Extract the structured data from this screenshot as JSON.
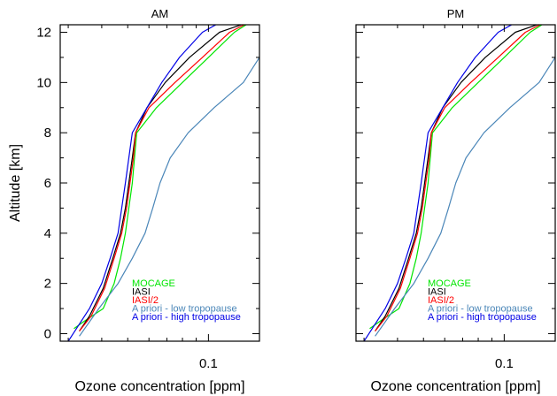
{
  "chart_data": [
    {
      "type": "line",
      "title": "AM",
      "xlabel": "Ozone concentration [ppm]",
      "ylabel": "Altitude [km]",
      "xscale": "log",
      "xlim": [
        0.028,
        0.155
      ],
      "ylim": [
        -0.3,
        12.3
      ],
      "x_ticks": [
        0.1
      ],
      "x_tick_labels": [
        "0.1"
      ],
      "y_ticks": [
        0,
        2,
        4,
        6,
        8,
        10,
        12
      ],
      "y_tick_labels": [
        "0",
        "2",
        "4",
        "6",
        "8",
        "10",
        "12"
      ],
      "legend_position": "bottom-right",
      "series": [
        {
          "name": "MOCAGE",
          "color": "#00e600",
          "x": [
            0.0315,
            0.0345,
            0.0405,
            0.0445,
            0.047,
            0.049,
            0.0505,
            0.052,
            0.054,
            0.064,
            0.08,
            0.1,
            0.125,
            0.148
          ],
          "y": [
            0.2,
            0.5,
            1.0,
            2.0,
            3.0,
            4.0,
            5.0,
            6.0,
            8.0,
            9.0,
            10.0,
            11.0,
            12.0,
            12.5
          ]
        },
        {
          "name": "IASI",
          "color": "#000000",
          "x": [
            0.033,
            0.036,
            0.0405,
            0.044,
            0.047,
            0.049,
            0.0505,
            0.052,
            0.0535,
            0.059,
            0.069,
            0.085,
            0.11,
            0.15
          ],
          "y": [
            0.1,
            0.7,
            1.8,
            3.0,
            4.0,
            5.0,
            6.0,
            7.0,
            8.0,
            9.0,
            10.0,
            11.0,
            12.0,
            12.5
          ]
        },
        {
          "name": "IASI/2",
          "color": "#ff0000",
          "x": [
            0.033,
            0.0365,
            0.041,
            0.0445,
            0.0475,
            0.0495,
            0.051,
            0.0525,
            0.0535,
            0.06,
            0.075,
            0.095,
            0.12,
            0.148
          ],
          "y": [
            0.1,
            0.7,
            1.8,
            3.0,
            4.0,
            5.0,
            6.0,
            7.0,
            8.0,
            9.0,
            10.0,
            11.0,
            12.0,
            12.5
          ]
        },
        {
          "name": "A priori - low tropopause",
          "color": "#4a86b8",
          "x": [
            0.033,
            0.039,
            0.046,
            0.052,
            0.058,
            0.062,
            0.066,
            0.072,
            0.084,
            0.105,
            0.135,
            0.155
          ],
          "y": [
            -0.1,
            1.0,
            2.0,
            3.0,
            4.0,
            5.0,
            6.0,
            7.0,
            8.0,
            9.0,
            10.0,
            11.0
          ]
        },
        {
          "name": "A priori - high tropopause",
          "color": "#0000e6",
          "x": [
            0.03,
            0.036,
            0.04,
            0.043,
            0.046,
            0.049,
            0.052,
            0.059,
            0.067,
            0.078,
            0.095,
            0.115
          ],
          "y": [
            -0.3,
            1.0,
            2.0,
            3.0,
            4.0,
            6.0,
            8.0,
            9.0,
            10.0,
            11.0,
            12.0,
            12.5
          ]
        }
      ]
    },
    {
      "type": "line",
      "title": "PM",
      "xlabel": "Ozone concentration [ppm]",
      "ylabel": "",
      "xscale": "log",
      "xlim": [
        0.028,
        0.155
      ],
      "ylim": [
        -0.3,
        12.3
      ],
      "x_ticks": [
        0.1
      ],
      "x_tick_labels": [
        "0.1"
      ],
      "y_ticks": [
        0,
        2,
        4,
        6,
        8,
        10,
        12
      ],
      "y_tick_labels": [],
      "legend_position": "bottom-right",
      "series": [
        {
          "name": "MOCAGE",
          "color": "#00e600",
          "x": [
            0.0315,
            0.0345,
            0.0405,
            0.0445,
            0.047,
            0.049,
            0.0505,
            0.052,
            0.054,
            0.064,
            0.08,
            0.1,
            0.125,
            0.148
          ],
          "y": [
            0.2,
            0.5,
            1.0,
            2.0,
            3.0,
            4.0,
            5.0,
            6.0,
            8.0,
            9.0,
            10.0,
            11.0,
            12.0,
            12.5
          ]
        },
        {
          "name": "IASI",
          "color": "#000000",
          "x": [
            0.033,
            0.036,
            0.0405,
            0.044,
            0.047,
            0.049,
            0.0505,
            0.052,
            0.0535,
            0.059,
            0.069,
            0.085,
            0.11,
            0.15
          ],
          "y": [
            0.1,
            0.7,
            1.8,
            3.0,
            4.0,
            5.0,
            6.0,
            7.0,
            8.0,
            9.0,
            10.0,
            11.0,
            12.0,
            12.5
          ]
        },
        {
          "name": "IASI/2",
          "color": "#ff0000",
          "x": [
            0.033,
            0.0365,
            0.041,
            0.0445,
            0.0475,
            0.0495,
            0.051,
            0.0525,
            0.0535,
            0.06,
            0.075,
            0.095,
            0.12,
            0.148
          ],
          "y": [
            0.1,
            0.7,
            1.8,
            3.0,
            4.0,
            5.0,
            6.0,
            7.0,
            8.0,
            9.0,
            10.0,
            11.0,
            12.0,
            12.5
          ]
        },
        {
          "name": "A priori - low tropopause",
          "color": "#4a86b8",
          "x": [
            0.033,
            0.039,
            0.046,
            0.052,
            0.058,
            0.062,
            0.066,
            0.072,
            0.084,
            0.105,
            0.135,
            0.155
          ],
          "y": [
            -0.1,
            1.0,
            2.0,
            3.0,
            4.0,
            5.0,
            6.0,
            7.0,
            8.0,
            9.0,
            10.0,
            11.0
          ]
        },
        {
          "name": "A priori - high tropopause",
          "color": "#0000e6",
          "x": [
            0.03,
            0.036,
            0.04,
            0.043,
            0.046,
            0.049,
            0.052,
            0.059,
            0.067,
            0.078,
            0.095,
            0.115
          ],
          "y": [
            -0.3,
            1.0,
            2.0,
            3.0,
            4.0,
            6.0,
            8.0,
            9.0,
            10.0,
            11.0,
            12.0,
            12.5
          ]
        }
      ]
    }
  ]
}
